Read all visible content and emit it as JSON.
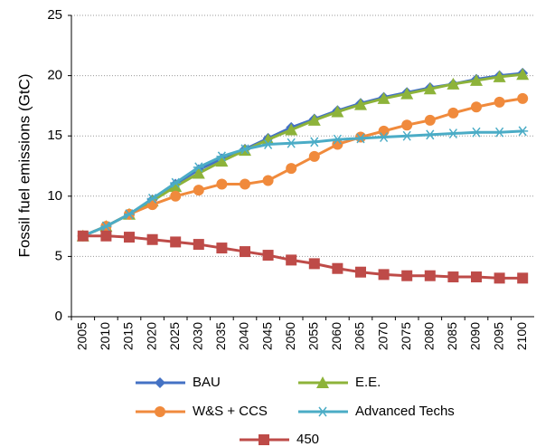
{
  "chart_data": {
    "type": "line",
    "ylabel": "Fossil fuel emissions (GtC)",
    "categories": [
      "2005",
      "2010",
      "2015",
      "2020",
      "2025",
      "2030",
      "2035",
      "2040",
      "2045",
      "2050",
      "2055",
      "2060",
      "2065",
      "2070",
      "2075",
      "2080",
      "2085",
      "2090",
      "2095",
      "2100"
    ],
    "series": [
      {
        "name": "BAU",
        "color": "#4472c4",
        "marker": "diamond",
        "values": [
          6.7,
          7.5,
          8.5,
          9.7,
          11.0,
          12.2,
          13.1,
          13.9,
          14.8,
          15.7,
          16.4,
          17.1,
          17.7,
          18.2,
          18.6,
          19.0,
          19.3,
          19.7,
          20.0,
          20.2
        ]
      },
      {
        "name": "E.E.",
        "color": "#8db33a",
        "marker": "triangle",
        "values": [
          6.7,
          7.5,
          8.5,
          9.6,
          10.8,
          11.9,
          12.9,
          13.8,
          14.7,
          15.5,
          16.3,
          17.0,
          17.6,
          18.1,
          18.5,
          18.9,
          19.3,
          19.6,
          19.9,
          20.1
        ]
      },
      {
        "name": "W&S + CCS",
        "color": "#f08a3c",
        "marker": "circle",
        "values": [
          6.7,
          7.5,
          8.5,
          9.3,
          10.0,
          10.5,
          11.0,
          11.0,
          11.3,
          12.3,
          13.3,
          14.3,
          14.9,
          15.4,
          15.9,
          16.3,
          16.9,
          17.4,
          17.8,
          18.1
        ]
      },
      {
        "name": "Advanced Techs",
        "color": "#4bacc6",
        "marker": "asterisk",
        "values": [
          6.7,
          7.5,
          8.5,
          9.8,
          11.1,
          12.4,
          13.3,
          13.9,
          14.3,
          14.4,
          14.5,
          14.7,
          14.8,
          14.9,
          15.0,
          15.1,
          15.2,
          15.3,
          15.3,
          15.4
        ]
      },
      {
        "name": "450",
        "color": "#be4b48",
        "marker": "square",
        "values": [
          6.7,
          6.7,
          6.6,
          6.4,
          6.2,
          6.0,
          5.7,
          5.4,
          5.1,
          4.7,
          4.4,
          4.0,
          3.7,
          3.5,
          3.4,
          3.4,
          3.3,
          3.3,
          3.2,
          3.2
        ]
      }
    ],
    "ylim": [
      0,
      25
    ],
    "yticks": [
      0,
      5,
      10,
      15,
      20,
      25
    ],
    "grid": true,
    "legend": "bottom"
  }
}
